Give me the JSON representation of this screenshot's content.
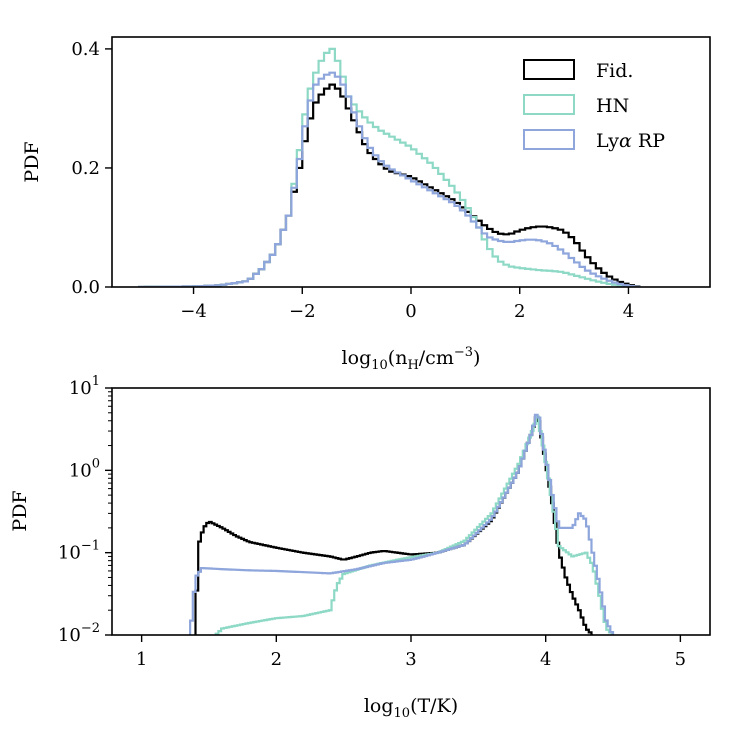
{
  "chart_data": [
    {
      "type": "step-histogram",
      "xlabel": "log10(nH/cm^-3)",
      "xlabel_main": "log",
      "xlabel_sub": "10",
      "xlabel_inner": "(n",
      "xlabel_inner_sub": "H",
      "xlabel_unit": "/cm",
      "xlabel_sup": "−3",
      "xlabel_close": ")",
      "ylabel": "PDF",
      "xlim": [
        -5.5,
        5.5
      ],
      "ylim": [
        0,
        0.42
      ],
      "yscale": "linear",
      "xticks": [
        -4,
        -2,
        0,
        2,
        4
      ],
      "xtick_labels": [
        "−4",
        "−2",
        "0",
        "2",
        "4"
      ],
      "yticks": [
        0.0,
        0.2,
        0.4
      ],
      "ytick_labels": [
        "0.0",
        "0.2",
        "0.4"
      ],
      "legend": {
        "placement": "top-right",
        "entries": [
          {
            "label": "Fid.",
            "color": "#000000"
          },
          {
            "label": "HN",
            "color": "#8dd9c6"
          },
          {
            "label": "Ly",
            "symbol": "α",
            "label_suffix": " RP",
            "color": "#8ea6dc"
          }
        ]
      },
      "series": [
        {
          "name": "Fid.",
          "color": "#000000",
          "points": [
            [
              -5.0,
              0.0
            ],
            [
              -4.0,
              0.001
            ],
            [
              -3.5,
              0.003
            ],
            [
              -3.0,
              0.01
            ],
            [
              -2.75,
              0.03
            ],
            [
              -2.5,
              0.06
            ],
            [
              -2.25,
              0.12
            ],
            [
              -2.1,
              0.18
            ],
            [
              -2.0,
              0.22
            ],
            [
              -1.9,
              0.27
            ],
            [
              -1.75,
              0.31
            ],
            [
              -1.6,
              0.33
            ],
            [
              -1.45,
              0.34
            ],
            [
              -1.3,
              0.33
            ],
            [
              -1.15,
              0.3
            ],
            [
              -1.0,
              0.27
            ],
            [
              -0.8,
              0.23
            ],
            [
              -0.6,
              0.21
            ],
            [
              -0.4,
              0.195
            ],
            [
              -0.2,
              0.19
            ],
            [
              0.0,
              0.185
            ],
            [
              0.2,
              0.175
            ],
            [
              0.4,
              0.165
            ],
            [
              0.6,
              0.155
            ],
            [
              0.8,
              0.145
            ],
            [
              1.0,
              0.13
            ],
            [
              1.2,
              0.115
            ],
            [
              1.4,
              0.1
            ],
            [
              1.6,
              0.09
            ],
            [
              1.8,
              0.088
            ],
            [
              2.0,
              0.095
            ],
            [
              2.2,
              0.1
            ],
            [
              2.4,
              0.102
            ],
            [
              2.6,
              0.1
            ],
            [
              2.8,
              0.095
            ],
            [
              3.0,
              0.08
            ],
            [
              3.2,
              0.055
            ],
            [
              3.4,
              0.035
            ],
            [
              3.6,
              0.02
            ],
            [
              3.8,
              0.01
            ],
            [
              4.0,
              0.004
            ],
            [
              4.2,
              0.0
            ]
          ]
        },
        {
          "name": "HN",
          "color": "#8dd9c6",
          "points": [
            [
              -5.0,
              0.0
            ],
            [
              -4.0,
              0.001
            ],
            [
              -3.5,
              0.003
            ],
            [
              -3.0,
              0.01
            ],
            [
              -2.75,
              0.03
            ],
            [
              -2.5,
              0.06
            ],
            [
              -2.25,
              0.12
            ],
            [
              -2.1,
              0.2
            ],
            [
              -2.0,
              0.26
            ],
            [
              -1.9,
              0.32
            ],
            [
              -1.75,
              0.36
            ],
            [
              -1.6,
              0.39
            ],
            [
              -1.45,
              0.4
            ],
            [
              -1.3,
              0.37
            ],
            [
              -1.15,
              0.32
            ],
            [
              -1.0,
              0.3
            ],
            [
              -0.8,
              0.28
            ],
            [
              -0.6,
              0.265
            ],
            [
              -0.4,
              0.255
            ],
            [
              -0.2,
              0.245
            ],
            [
              0.0,
              0.235
            ],
            [
              0.2,
              0.22
            ],
            [
              0.4,
              0.205
            ],
            [
              0.6,
              0.185
            ],
            [
              0.8,
              0.165
            ],
            [
              1.0,
              0.14
            ],
            [
              1.2,
              0.11
            ],
            [
              1.4,
              0.07
            ],
            [
              1.6,
              0.045
            ],
            [
              1.8,
              0.035
            ],
            [
              2.0,
              0.032
            ],
            [
              2.2,
              0.03
            ],
            [
              2.4,
              0.028
            ],
            [
              2.6,
              0.027
            ],
            [
              2.8,
              0.025
            ],
            [
              3.0,
              0.02
            ],
            [
              3.2,
              0.015
            ],
            [
              3.4,
              0.01
            ],
            [
              3.6,
              0.006
            ],
            [
              3.8,
              0.003
            ],
            [
              4.0,
              0.001
            ],
            [
              4.2,
              0.0
            ]
          ]
        },
        {
          "name": "Lyα RP",
          "color": "#8ea6dc",
          "points": [
            [
              -5.0,
              0.0
            ],
            [
              -4.0,
              0.001
            ],
            [
              -3.5,
              0.003
            ],
            [
              -3.0,
              0.01
            ],
            [
              -2.75,
              0.03
            ],
            [
              -2.5,
              0.06
            ],
            [
              -2.25,
              0.12
            ],
            [
              -2.1,
              0.19
            ],
            [
              -2.0,
              0.24
            ],
            [
              -1.9,
              0.3
            ],
            [
              -1.75,
              0.34
            ],
            [
              -1.6,
              0.355
            ],
            [
              -1.45,
              0.36
            ],
            [
              -1.3,
              0.35
            ],
            [
              -1.15,
              0.32
            ],
            [
              -1.0,
              0.28
            ],
            [
              -0.8,
              0.24
            ],
            [
              -0.6,
              0.215
            ],
            [
              -0.4,
              0.2
            ],
            [
              -0.2,
              0.19
            ],
            [
              0.0,
              0.18
            ],
            [
              0.2,
              0.17
            ],
            [
              0.4,
              0.16
            ],
            [
              0.6,
              0.15
            ],
            [
              0.8,
              0.14
            ],
            [
              1.0,
              0.125
            ],
            [
              1.2,
              0.105
            ],
            [
              1.4,
              0.085
            ],
            [
              1.6,
              0.078
            ],
            [
              1.8,
              0.075
            ],
            [
              2.0,
              0.078
            ],
            [
              2.2,
              0.08
            ],
            [
              2.4,
              0.078
            ],
            [
              2.6,
              0.072
            ],
            [
              2.8,
              0.06
            ],
            [
              3.0,
              0.045
            ],
            [
              3.2,
              0.03
            ],
            [
              3.4,
              0.02
            ],
            [
              3.6,
              0.012
            ],
            [
              3.8,
              0.006
            ],
            [
              4.0,
              0.002
            ],
            [
              4.2,
              0.0
            ]
          ]
        }
      ]
    },
    {
      "type": "step-histogram",
      "xlabel": "log10(T/K)",
      "xlabel_main": "log",
      "xlabel_sub": "10",
      "xlabel_rest": "(T/K)",
      "ylabel": "PDF",
      "xlim": [
        0.78,
        5.22
      ],
      "ylim": [
        0.01,
        10
      ],
      "yscale": "log",
      "xticks": [
        1,
        2,
        3,
        4,
        5
      ],
      "xtick_labels": [
        "1",
        "2",
        "3",
        "4",
        "5"
      ],
      "yticks": [
        0.01,
        0.1,
        1,
        10
      ],
      "ytick_labels": [
        {
          "base": "10",
          "exp": "−2"
        },
        {
          "base": "10",
          "exp": "−1"
        },
        {
          "base": "10",
          "exp": "0"
        },
        {
          "base": "10",
          "exp": "1"
        }
      ],
      "series": [
        {
          "name": "Fid.",
          "color": "#000000",
          "points": [
            [
              1.4,
              0.01
            ],
            [
              1.42,
              0.12
            ],
            [
              1.46,
              0.2
            ],
            [
              1.5,
              0.24
            ],
            [
              1.6,
              0.2
            ],
            [
              1.7,
              0.16
            ],
            [
              1.8,
              0.135
            ],
            [
              2.0,
              0.115
            ],
            [
              2.2,
              0.1
            ],
            [
              2.4,
              0.09
            ],
            [
              2.5,
              0.082
            ],
            [
              2.6,
              0.09
            ],
            [
              2.7,
              0.1
            ],
            [
              2.8,
              0.105
            ],
            [
              3.0,
              0.095
            ],
            [
              3.2,
              0.1
            ],
            [
              3.4,
              0.125
            ],
            [
              3.6,
              0.25
            ],
            [
              3.7,
              0.5
            ],
            [
              3.8,
              1.0
            ],
            [
              3.9,
              3.0
            ],
            [
              3.94,
              5.0
            ],
            [
              3.98,
              2.0
            ],
            [
              4.05,
              0.4
            ],
            [
              4.1,
              0.1
            ],
            [
              4.15,
              0.05
            ],
            [
              4.2,
              0.03
            ],
            [
              4.25,
              0.02
            ],
            [
              4.3,
              0.012
            ],
            [
              4.35,
              0.01
            ]
          ]
        },
        {
          "name": "HN",
          "color": "#8dd9c6",
          "points": [
            [
              1.55,
              0.01
            ],
            [
              1.6,
              0.012
            ],
            [
              1.8,
              0.014
            ],
            [
              2.0,
              0.016
            ],
            [
              2.2,
              0.017
            ],
            [
              2.4,
              0.02
            ],
            [
              2.45,
              0.04
            ],
            [
              2.5,
              0.055
            ],
            [
              2.7,
              0.07
            ],
            [
              2.9,
              0.082
            ],
            [
              3.0,
              0.088
            ],
            [
              3.2,
              0.1
            ],
            [
              3.4,
              0.14
            ],
            [
              3.6,
              0.3
            ],
            [
              3.7,
              0.6
            ],
            [
              3.8,
              1.2
            ],
            [
              3.9,
              3.0
            ],
            [
              3.94,
              4.5
            ],
            [
              3.98,
              2.0
            ],
            [
              4.05,
              0.4
            ],
            [
              4.1,
              0.12
            ],
            [
              4.2,
              0.09
            ],
            [
              4.3,
              0.1
            ],
            [
              4.35,
              0.07
            ],
            [
              4.4,
              0.03
            ],
            [
              4.45,
              0.012
            ],
            [
              4.5,
              0.01
            ]
          ]
        },
        {
          "name": "Lyα RP",
          "color": "#8ea6dc",
          "points": [
            [
              1.36,
              0.01
            ],
            [
              1.4,
              0.05
            ],
            [
              1.45,
              0.065
            ],
            [
              1.6,
              0.063
            ],
            [
              1.8,
              0.061
            ],
            [
              2.0,
              0.06
            ],
            [
              2.2,
              0.058
            ],
            [
              2.4,
              0.056
            ],
            [
              2.6,
              0.063
            ],
            [
              2.8,
              0.075
            ],
            [
              3.0,
              0.082
            ],
            [
              3.1,
              0.09
            ],
            [
              3.2,
              0.1
            ],
            [
              3.4,
              0.125
            ],
            [
              3.6,
              0.26
            ],
            [
              3.7,
              0.5
            ],
            [
              3.8,
              1.0
            ],
            [
              3.9,
              3.0
            ],
            [
              3.94,
              5.5
            ],
            [
              3.98,
              2.2
            ],
            [
              4.05,
              0.5
            ],
            [
              4.1,
              0.2
            ],
            [
              4.2,
              0.2
            ],
            [
              4.25,
              0.3
            ],
            [
              4.3,
              0.25
            ],
            [
              4.35,
              0.1
            ],
            [
              4.4,
              0.04
            ],
            [
              4.45,
              0.015
            ],
            [
              4.5,
              0.01
            ]
          ]
        }
      ]
    }
  ]
}
